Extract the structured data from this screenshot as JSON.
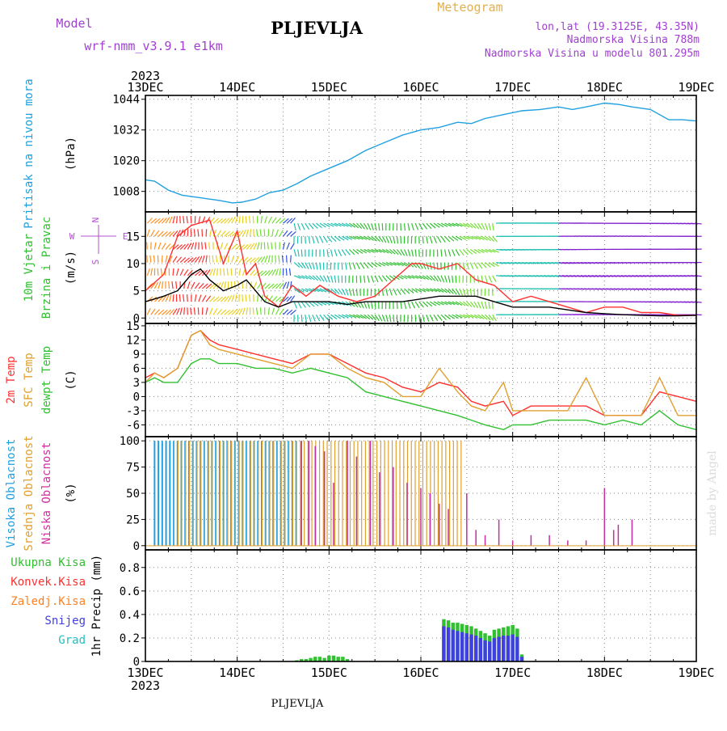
{
  "header": {
    "model_label": "Model",
    "model_name": "wrf-nmm_v3.9.1 e1km",
    "station": "PLJEVLJA",
    "product": "Meteogram",
    "location": "lon,lat (19.3125E, 43.35N)",
    "elevation": "Nadmorska Visina 788m",
    "model_elevation": "Nadmorska Visina u modelu 801.295m",
    "credit": "made by Angel",
    "footer_station": "PLJEVLJA",
    "colors": {
      "purple": "#a040d0",
      "gold": "#e0b050",
      "black": "#000000"
    }
  },
  "time_axis": {
    "year": "2023",
    "ticks": [
      "13DEC",
      "14DEC",
      "15DEC",
      "16DEC",
      "17DEC",
      "18DEC",
      "19DEC"
    ],
    "range_days": [
      0,
      6
    ]
  },
  "wind_compass": {
    "n": "N",
    "w": "W",
    "e": "E",
    "s": "S"
  },
  "chart_data": [
    {
      "type": "line",
      "id": "pressure",
      "ylabel_lines": [
        "Pritisak na nivou mora",
        "(hPa)"
      ],
      "ylabel_colors": [
        "#20a0e0",
        "#000000"
      ],
      "yticks": [
        "1044",
        "1032",
        "1020",
        "1008"
      ],
      "ytick_values": [
        1044,
        1032,
        1020,
        1008
      ],
      "ylim": [
        1000,
        1045.5
      ],
      "series": [
        {
          "color": "#20a0e0",
          "x": [
            0,
            0.1,
            0.25,
            0.4,
            0.6,
            0.8,
            0.95,
            1.05,
            1.2,
            1.35,
            1.5,
            1.65,
            1.8,
            2.0,
            2.2,
            2.4,
            2.6,
            2.8,
            3.0,
            3.2,
            3.4,
            3.55,
            3.7,
            3.9,
            4.1,
            4.3,
            4.5,
            4.65,
            4.8,
            5.0,
            5.15,
            5.3,
            5.5,
            5.7,
            5.85,
            6.0
          ],
          "y": [
            1012.5,
            1012,
            1008.5,
            1006.5,
            1005.5,
            1004.5,
            1003.5,
            1003.8,
            1005,
            1007.5,
            1008.5,
            1011,
            1014,
            1017,
            1020,
            1024,
            1027,
            1030,
            1032,
            1033,
            1035,
            1034.5,
            1036.5,
            1038,
            1039.5,
            1040,
            1041,
            1040,
            1041,
            1042.5,
            1042,
            1041,
            1040,
            1036,
            1036,
            1035.5
          ]
        }
      ]
    },
    {
      "type": "line",
      "id": "wind",
      "ylabel_lines": [
        "10m Vjetar",
        "Brzina i Pravac",
        "(m/s)"
      ],
      "ylabel_colors": [
        "#30c030",
        "#30c030",
        "#000000"
      ],
      "yticks": [
        "15",
        "10",
        "5",
        "0"
      ],
      "ytick_values": [
        15,
        10,
        5,
        0
      ],
      "ylim": [
        -1,
        19.5
      ],
      "series": [
        {
          "name": "gust",
          "color": "#ff3030",
          "x": [
            0,
            0.2,
            0.35,
            0.5,
            0.7,
            0.85,
            1.0,
            1.1,
            1.2,
            1.3,
            1.45,
            1.6,
            1.75,
            1.9,
            2.1,
            2.3,
            2.5,
            2.7,
            2.9,
            3.0,
            3.2,
            3.4,
            3.6,
            3.8,
            4.0,
            4.2,
            4.4,
            4.6,
            4.8,
            5.0,
            5.2,
            5.4,
            5.6,
            5.8,
            6.0
          ],
          "y": [
            5,
            8,
            15,
            17,
            18,
            10,
            16,
            8,
            10,
            4,
            2,
            6,
            4,
            6,
            4,
            3,
            4,
            7,
            10,
            10,
            9,
            10,
            7,
            6,
            3,
            4,
            3,
            2,
            1,
            2,
            2,
            1,
            1,
            0.5,
            0.5
          ]
        },
        {
          "name": "speed",
          "color": "#000000",
          "x": [
            0,
            0.2,
            0.35,
            0.5,
            0.6,
            0.7,
            0.85,
            1.0,
            1.1,
            1.2,
            1.3,
            1.45,
            1.6,
            1.8,
            2.0,
            2.2,
            2.4,
            2.6,
            2.8,
            3.0,
            3.2,
            3.4,
            3.6,
            3.8,
            4.0,
            4.2,
            4.4,
            4.6,
            4.8,
            5.0,
            5.2,
            5.4,
            5.6,
            5.8,
            6.0
          ],
          "y": [
            3,
            4,
            5,
            8,
            9,
            7,
            5,
            6,
            7,
            5,
            3,
            2,
            3,
            3,
            3,
            2.5,
            3,
            3,
            3,
            3.5,
            4,
            4,
            4,
            3,
            2,
            2,
            2,
            1.5,
            1,
            0.8,
            0.6,
            0.5,
            0.4,
            0.4,
            0.5
          ]
        }
      ]
    },
    {
      "type": "line",
      "id": "temperature",
      "ylabel_lines": [
        "2m Temp",
        "SFC Temp",
        "dewpt Temp",
        "(C)"
      ],
      "ylabel_colors": [
        "#ff3030",
        "#e0a030",
        "#30c030",
        "#000000"
      ],
      "yticks": [
        "15",
        "12",
        "9",
        "6",
        "3",
        "0",
        "-3",
        "-6"
      ],
      "ytick_values": [
        15,
        12,
        9,
        6,
        3,
        0,
        -3,
        -6
      ],
      "ylim": [
        -8.5,
        15.5
      ],
      "series": [
        {
          "name": "2m Temp",
          "color": "#ff3030",
          "x": [
            0,
            0.1,
            0.2,
            0.35,
            0.5,
            0.6,
            0.7,
            0.8,
            1.0,
            1.2,
            1.4,
            1.6,
            1.8,
            2.0,
            2.2,
            2.4,
            2.6,
            2.8,
            3.0,
            3.2,
            3.4,
            3.55,
            3.7,
            3.9,
            4.0,
            4.2,
            4.4,
            4.6,
            4.8,
            5.0,
            5.2,
            5.4,
            5.6,
            5.8,
            6.0
          ],
          "y": [
            4,
            5,
            4,
            6,
            13,
            14,
            12,
            11,
            10,
            9,
            8,
            7,
            9,
            9,
            7,
            5,
            4,
            2,
            1,
            3,
            2,
            -1,
            -2,
            -1,
            -4,
            -2,
            -2,
            -2,
            -2,
            -4,
            -4,
            -4,
            1,
            0,
            -1
          ]
        },
        {
          "name": "SFC Temp",
          "color": "#e0a030",
          "x": [
            0,
            0.1,
            0.2,
            0.35,
            0.5,
            0.6,
            0.7,
            0.8,
            1.0,
            1.2,
            1.4,
            1.6,
            1.8,
            2.0,
            2.2,
            2.4,
            2.6,
            2.8,
            3.0,
            3.2,
            3.4,
            3.55,
            3.7,
            3.9,
            4.0,
            4.2,
            4.4,
            4.6,
            4.8,
            5.0,
            5.2,
            5.4,
            5.6,
            5.8,
            6.0
          ],
          "y": [
            3,
            5,
            4,
            6,
            13,
            14,
            11,
            10,
            9,
            8,
            7,
            6,
            9,
            9,
            6,
            4,
            3,
            0,
            0,
            6,
            1,
            -2,
            -3,
            3,
            -3,
            -3,
            -3,
            -3,
            4,
            -4,
            -4,
            -4,
            4,
            -4,
            -4
          ]
        },
        {
          "name": "dewpt Temp",
          "color": "#30c030",
          "x": [
            0,
            0.1,
            0.2,
            0.35,
            0.5,
            0.6,
            0.7,
            0.8,
            1.0,
            1.2,
            1.4,
            1.6,
            1.8,
            2.0,
            2.2,
            2.4,
            2.6,
            2.8,
            3.0,
            3.2,
            3.4,
            3.55,
            3.7,
            3.9,
            4.0,
            4.2,
            4.4,
            4.6,
            4.8,
            5.0,
            5.2,
            5.4,
            5.6,
            5.8,
            6.0
          ],
          "y": [
            3,
            4,
            3,
            3,
            7,
            8,
            8,
            7,
            7,
            6,
            6,
            5,
            6,
            5,
            4,
            1,
            0,
            -1,
            -2,
            -3,
            -4,
            -5,
            -6,
            -7,
            -6,
            -6,
            -5,
            -5,
            -5,
            -6,
            -5,
            -6,
            -3,
            -6,
            -7
          ]
        }
      ]
    },
    {
      "type": "bar",
      "id": "cloud",
      "ylabel_lines": [
        "Visoka Oblacnost",
        "Srednja Oblacnost",
        "Niska Oblacnost",
        "(%)"
      ],
      "ylabel_colors": [
        "#20a0e0",
        "#e0a030",
        "#d030a0",
        "#000000"
      ],
      "yticks": [
        "100",
        "75",
        "50",
        "25",
        "0"
      ],
      "ytick_values": [
        100,
        75,
        50,
        25,
        0
      ],
      "ylim": [
        -4,
        104
      ],
      "high": {
        "color": "#20a0e0",
        "x_range": [
          0.1,
          1.65
        ],
        "value": 100
      },
      "mid": {
        "color": "#e0a030",
        "x_range": [
          0.3,
          3.45
        ],
        "value": 100
      },
      "low": {
        "color": "#c030a0",
        "x": [
          1.7,
          1.78,
          1.85,
          1.95,
          2.05,
          2.2,
          2.3,
          2.45,
          2.55,
          2.7,
          2.85,
          3.0,
          3.1,
          3.2,
          3.3,
          3.5,
          3.6,
          3.7,
          3.85,
          4.0,
          4.2,
          4.4,
          4.6,
          4.8,
          5.0,
          5.1,
          5.15,
          5.3
        ],
        "y": [
          100,
          100,
          95,
          90,
          60,
          100,
          85,
          100,
          70,
          75,
          60,
          55,
          50,
          40,
          35,
          50,
          15,
          10,
          25,
          5,
          10,
          10,
          5,
          5,
          55,
          15,
          20,
          25
        ]
      }
    },
    {
      "type": "bar",
      "id": "precip",
      "ylabel_lines": [
        "1hr Precip (mm)"
      ],
      "ylabel_colors": [
        "#000000"
      ],
      "legend": [
        {
          "label": "Ukupna Kisa",
          "color": "#30c030"
        },
        {
          "label": "Konvek.Kisa",
          "color": "#ff3030"
        },
        {
          "label": "Zaledj.Kisa",
          "color": "#ff8020"
        },
        {
          "label": "Snijeg",
          "color": "#4040e0"
        },
        {
          "label": "Grad",
          "color": "#20c0c0"
        }
      ],
      "yticks": [
        "0.8",
        "0.6",
        "0.4",
        "0.2",
        "0"
      ],
      "ytick_values": [
        0.8,
        0.6,
        0.4,
        0.2,
        0
      ],
      "ylim": [
        0,
        0.95
      ],
      "series": [
        {
          "name": "Ukupna Kisa",
          "color": "#30c030",
          "x": [
            1.65,
            1.7,
            1.75,
            1.8,
            1.85,
            1.9,
            1.95,
            2.0,
            2.05,
            2.1,
            2.15,
            2.2,
            3.25,
            3.3,
            3.35,
            3.4,
            3.45,
            3.5,
            3.55,
            3.6,
            3.65,
            3.7,
            3.75,
            3.8,
            3.85,
            3.9,
            3.95,
            4.0,
            4.05,
            4.1
          ],
          "y": [
            0.01,
            0.02,
            0.02,
            0.03,
            0.04,
            0.04,
            0.03,
            0.05,
            0.05,
            0.04,
            0.04,
            0.02,
            0.36,
            0.35,
            0.33,
            0.33,
            0.32,
            0.31,
            0.3,
            0.28,
            0.26,
            0.24,
            0.22,
            0.27,
            0.28,
            0.29,
            0.3,
            0.31,
            0.28,
            0.06
          ]
        },
        {
          "name": "Snijeg",
          "color": "#4040e0",
          "x": [
            3.25,
            3.3,
            3.35,
            3.4,
            3.45,
            3.5,
            3.55,
            3.6,
            3.65,
            3.7,
            3.75,
            3.8,
            3.85,
            3.9,
            3.95,
            4.0,
            4.05,
            4.1
          ],
          "y": [
            0.3,
            0.29,
            0.27,
            0.26,
            0.25,
            0.24,
            0.23,
            0.22,
            0.2,
            0.18,
            0.17,
            0.2,
            0.21,
            0.22,
            0.22,
            0.23,
            0.21,
            0.04
          ]
        }
      ]
    }
  ]
}
